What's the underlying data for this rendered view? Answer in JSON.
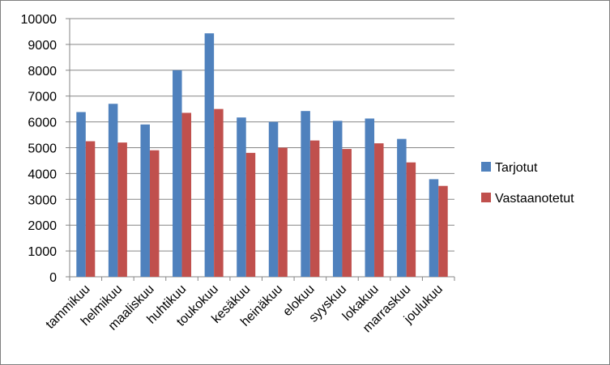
{
  "chart_data": {
    "type": "bar",
    "title": "",
    "xlabel": "",
    "ylabel": "",
    "categories": [
      "tammikuu",
      "helmikuu",
      "maaliskuu",
      "huhtikuu",
      "toukokuu",
      "kesäkuu",
      "heinäkuu",
      "elokuu",
      "syyskuu",
      "lokakuu",
      "marraskuu",
      "joulukuu"
    ],
    "series": [
      {
        "name": "Tarjotut",
        "color": "#4f81bd",
        "values": [
          6380,
          6700,
          5900,
          8000,
          9430,
          6170,
          6000,
          6420,
          6040,
          6130,
          5340,
          3780
        ]
      },
      {
        "name": "Vastaanotetut",
        "color": "#c0504d",
        "values": [
          5250,
          5200,
          4900,
          6350,
          6500,
          4800,
          5000,
          5280,
          4950,
          5170,
          4430,
          3520
        ]
      }
    ],
    "ylim": [
      0,
      10000
    ],
    "yticks": [
      0,
      1000,
      2000,
      3000,
      4000,
      5000,
      6000,
      7000,
      8000,
      9000,
      10000
    ],
    "grid": true,
    "legend": "right"
  }
}
